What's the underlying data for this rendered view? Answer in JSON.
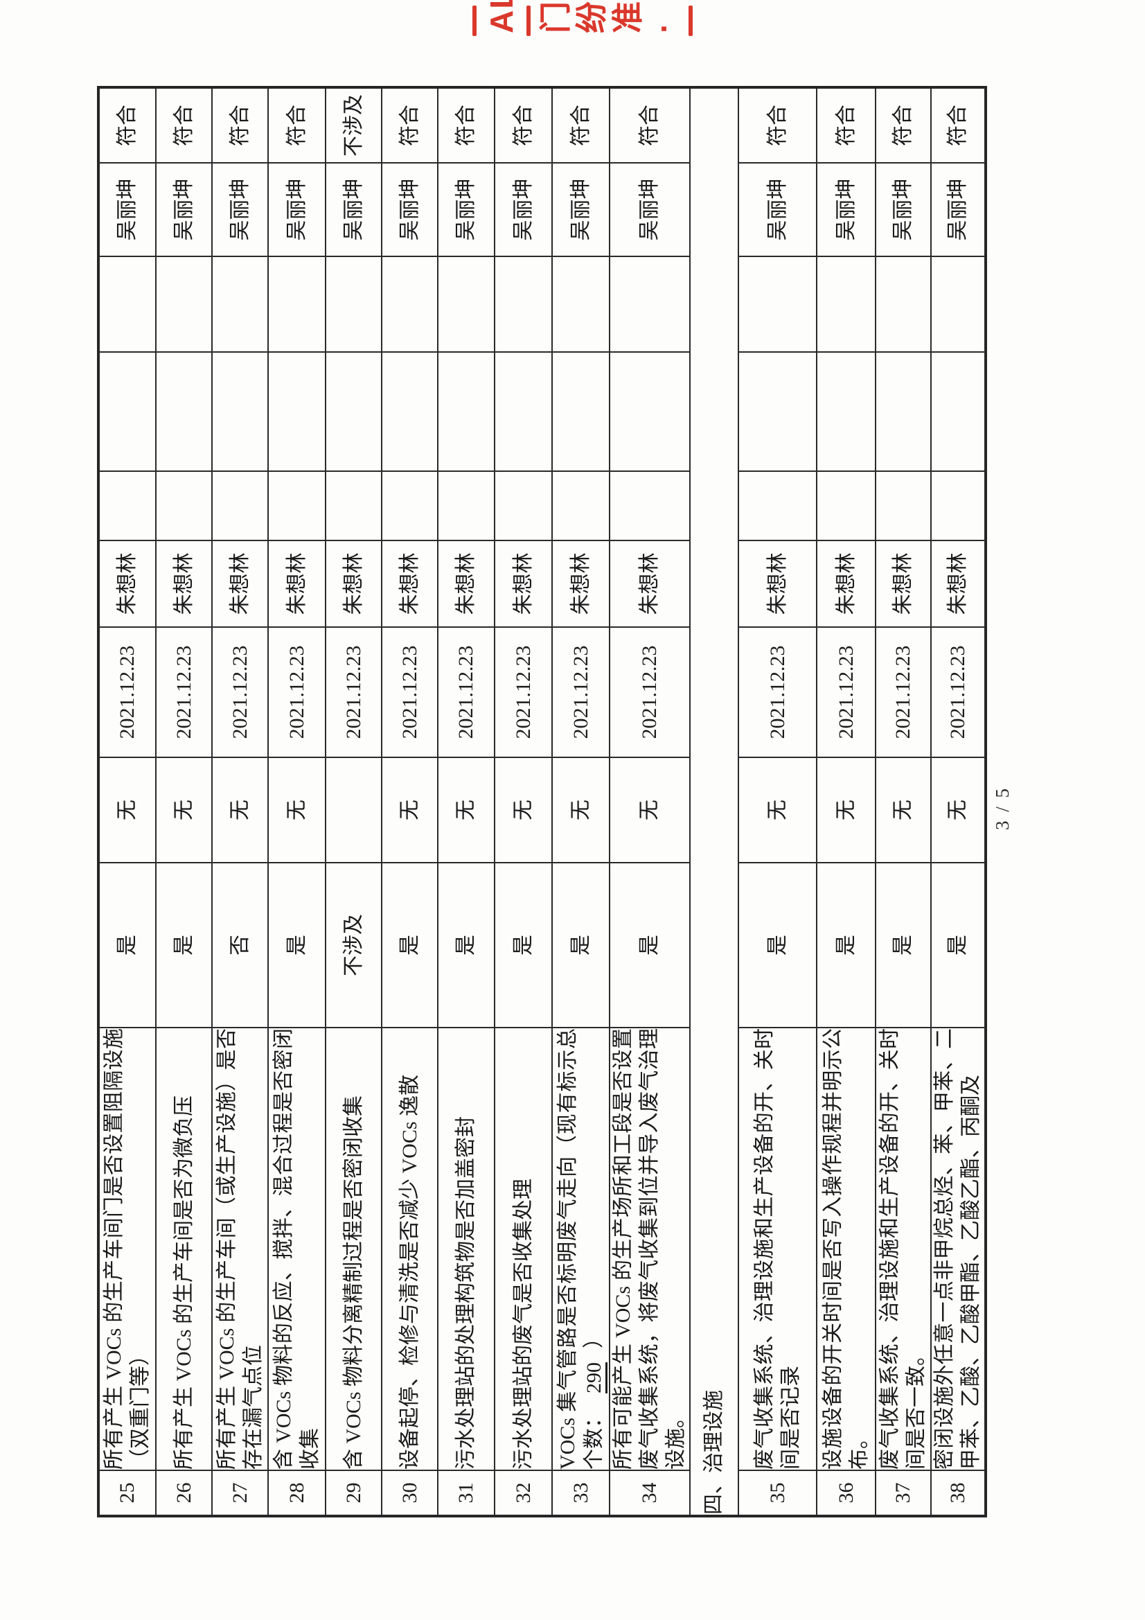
{
  "page": {
    "page_number": "3 / 5",
    "stamp": {
      "color": "#da382c",
      "fragments": [
        "AL",
        "门",
        "纷",
        "准",
        "·"
      ]
    }
  },
  "table": {
    "section_label": "四、治理设施",
    "rows": [
      {
        "no": "25",
        "item": "所有产生 VOCs 的生产车间门是否设置阻隔设施（双重门等）",
        "result": "是",
        "problem": "无",
        "date": "2021.12.23",
        "inspector": "朱想林",
        "reviewer": "吴丽坤",
        "conclusion": "符合"
      },
      {
        "no": "26",
        "item": "所有产生 VOCs 的生产车间是否为微负压",
        "result": "是",
        "problem": "无",
        "date": "2021.12.23",
        "inspector": "朱想林",
        "reviewer": "吴丽坤",
        "conclusion": "符合"
      },
      {
        "no": "27",
        "item": "所有产生 VOCs 的生产车间（或生产设施）是否存在漏气点位",
        "result": "否",
        "problem": "无",
        "date": "2021.12.23",
        "inspector": "朱想林",
        "reviewer": "吴丽坤",
        "conclusion": "符合"
      },
      {
        "no": "28",
        "item": "含 VOCs 物料的反应、搅拌、混合过程是否密闭收集",
        "result": "是",
        "problem": "无",
        "date": "2021.12.23",
        "inspector": "朱想林",
        "reviewer": "吴丽坤",
        "conclusion": "符合"
      },
      {
        "no": "29",
        "item": "含 VOCs 物料分离精制过程是否密闭收集",
        "result": "不涉及",
        "problem": "",
        "date": "2021.12.23",
        "inspector": "朱想林",
        "reviewer": "吴丽坤",
        "conclusion": "不涉及"
      },
      {
        "no": "30",
        "item": "设备起停、检修与清洗是否减少 VOCs 逸散",
        "result": "是",
        "problem": "无",
        "date": "2021.12.23",
        "inspector": "朱想林",
        "reviewer": "吴丽坤",
        "conclusion": "符合"
      },
      {
        "no": "31",
        "item": "污水处理站的处理构筑物是否加盖密封",
        "result": "是",
        "problem": "无",
        "date": "2021.12.23",
        "inspector": "朱想林",
        "reviewer": "吴丽坤",
        "conclusion": "符合"
      },
      {
        "no": "32",
        "item": "污水处理站的废气是否收集处理",
        "result": "是",
        "problem": "无",
        "date": "2021.12.23",
        "inspector": "朱想林",
        "reviewer": "吴丽坤",
        "conclusion": "符合"
      },
      {
        "no": "33",
        "item": "VOCs 集气管路是否标明废气走向（现有标示总个数：290）",
        "underline": "290",
        "result": "是",
        "problem": "无",
        "date": "2021.12.23",
        "inspector": "朱想林",
        "reviewer": "吴丽坤",
        "conclusion": "符合"
      },
      {
        "no": "34",
        "item": "所有可能产生 VOCs 的生产场所和工段是否设置废气收集系统，将废气收集到位并导入废气治理设施。",
        "result": "是",
        "problem": "无",
        "date": "2021.12.23",
        "inspector": "朱想林",
        "reviewer": "吴丽坤",
        "conclusion": "符合"
      },
      {
        "section": "四、治理设施"
      },
      {
        "no": "35",
        "item": "废气收集系统、治理设施和生产设备的开、关时间是否记录",
        "result": "是",
        "problem": "无",
        "date": "2021.12.23",
        "inspector": "朱想林",
        "reviewer": "吴丽坤",
        "conclusion": "符合"
      },
      {
        "no": "36",
        "item": "设施设备的开关时间是否写入操作规程并明示公布。",
        "result": "是",
        "problem": "无",
        "date": "2021.12.23",
        "inspector": "朱想林",
        "reviewer": "吴丽坤",
        "conclusion": "符合"
      },
      {
        "no": "37",
        "item": "废气收集系统、治理设施和生产设备的开、关时间是否一致。",
        "result": "是",
        "problem": "无",
        "date": "2021.12.23",
        "inspector": "朱想林",
        "reviewer": "吴丽坤",
        "conclusion": "符合"
      },
      {
        "no": "38",
        "item": "密闭设施外任意一点非甲烷总烃、苯、甲苯、二甲苯、乙酸、乙酸甲酯、乙酸乙酯、丙酮及",
        "result": "是",
        "problem": "无",
        "date": "2021.12.23",
        "inspector": "朱想林",
        "reviewer": "吴丽坤",
        "conclusion": "符合"
      }
    ]
  }
}
